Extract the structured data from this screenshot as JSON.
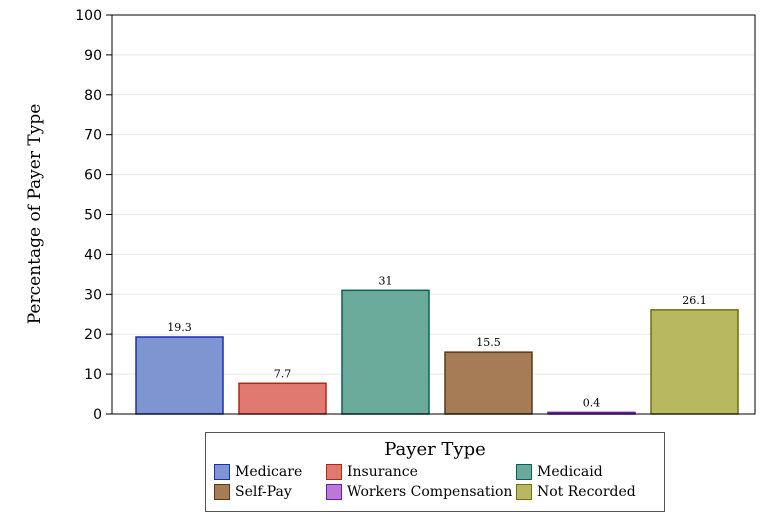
{
  "chart_data": {
    "type": "bar",
    "categories": [
      "Medicare",
      "Insurance",
      "Medicaid",
      "Self-Pay",
      "Workers Compensation",
      "Not Recorded"
    ],
    "values": [
      19.3,
      7.7,
      31,
      15.5,
      0.4,
      26.1
    ],
    "value_labels": [
      "19.3",
      "7.7",
      "31",
      "15.5",
      "0.4",
      "26.1"
    ],
    "ylabel": "Percentage of Payer Type",
    "xlabel": "",
    "ylim": [
      0,
      100
    ],
    "yticks": [
      0,
      10,
      20,
      30,
      40,
      50,
      60,
      70,
      80,
      90,
      100
    ],
    "grid": true,
    "legend": {
      "title": "Payer Type",
      "placement": "bottom"
    },
    "colors": [
      "#7f95d1",
      "#e07a70",
      "#6aab9c",
      "#a57c55",
      "#b879d8",
      "#b8b860"
    ],
    "edge_colors": [
      "#1b2fb0",
      "#b0271a",
      "#0e5f56",
      "#5a3a16",
      "#6a1fa0",
      "#6f6f10"
    ]
  }
}
